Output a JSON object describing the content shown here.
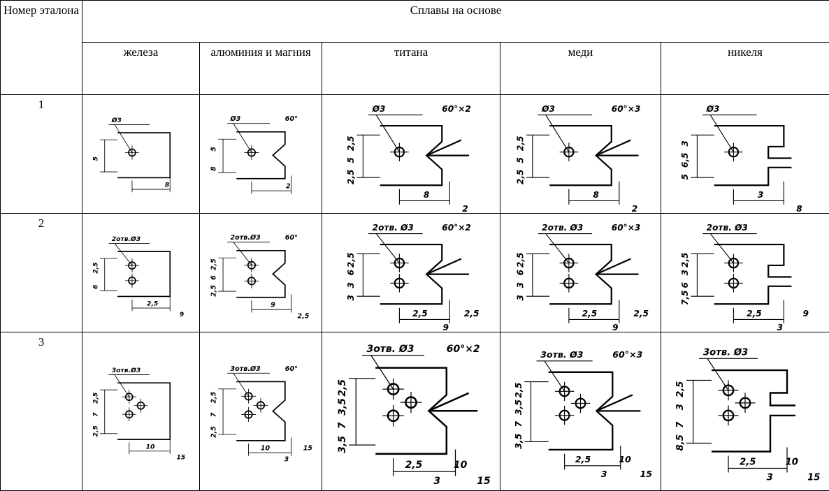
{
  "table": {
    "header": {
      "number": "Номер эталона",
      "group": "Сплавы на основе",
      "columns": [
        "железа",
        "алюминия и магния",
        "титана",
        "меди",
        "никеля"
      ]
    },
    "rows": [
      {
        "number": "1",
        "cells": [
          {
            "labels": [
              "Ø3",
              "5",
              "8"
            ]
          },
          {
            "labels": [
              "Ø3",
              "60°",
              "5",
              "8",
              "2"
            ]
          },
          {
            "labels": [
              "Ø3",
              "60°×2",
              "2,5",
              "5",
              "2,5",
              "8",
              "2"
            ]
          },
          {
            "labels": [
              "Ø3",
              "60°×3",
              "2,5",
              "5",
              "2,5",
              "8",
              "2"
            ]
          },
          {
            "labels": [
              "Ø3",
              "3",
              "6,5",
              "5",
              "3",
              "8"
            ]
          }
        ]
      },
      {
        "number": "2",
        "cells": [
          {
            "labels": [
              "2отв.Ø3",
              "2,5",
              "6",
              "2,5",
              "9"
            ]
          },
          {
            "labels": [
              "2отв.Ø3",
              "60°",
              "2,5",
              "6",
              "2,5",
              "9",
              "2,5"
            ]
          },
          {
            "labels": [
              "2отв. Ø3",
              "60°×2",
              "2,5",
              "6",
              "3",
              "3",
              "2,5",
              "9",
              "2,5"
            ]
          },
          {
            "labels": [
              "2отв. Ø3",
              "60°×3",
              "2,5",
              "6",
              "3",
              "3",
              "2,5",
              "9",
              "2,5"
            ]
          },
          {
            "labels": [
              "2отв. Ø3",
              "2,5",
              "3",
              "6",
              "7,5",
              "2,5",
              "3",
              "9"
            ]
          }
        ]
      },
      {
        "number": "3",
        "cells": [
          {
            "labels": [
              "3отв.Ø3",
              "2,5",
              "7",
              "2,5",
              "10",
              "15"
            ]
          },
          {
            "labels": [
              "3отв.Ø3",
              "60°",
              "2,5",
              "7",
              "2,5",
              "10",
              "3",
              "15"
            ]
          },
          {
            "labels": [
              "3отв. Ø3",
              "60°×2",
              "2,5",
              "3,5",
              "7",
              "3,5",
              "2,5",
              "3",
              "10",
              "15"
            ]
          },
          {
            "labels": [
              "3отв. Ø3",
              "60°×3",
              "2,5",
              "3,5",
              "7",
              "3,5",
              "2,5",
              "3",
              "10",
              "15"
            ]
          },
          {
            "labels": [
              "3отв. Ø3",
              "2,5",
              "3",
              "7",
              "8,5",
              "2,5",
              "3",
              "10",
              "15"
            ]
          }
        ]
      }
    ]
  }
}
